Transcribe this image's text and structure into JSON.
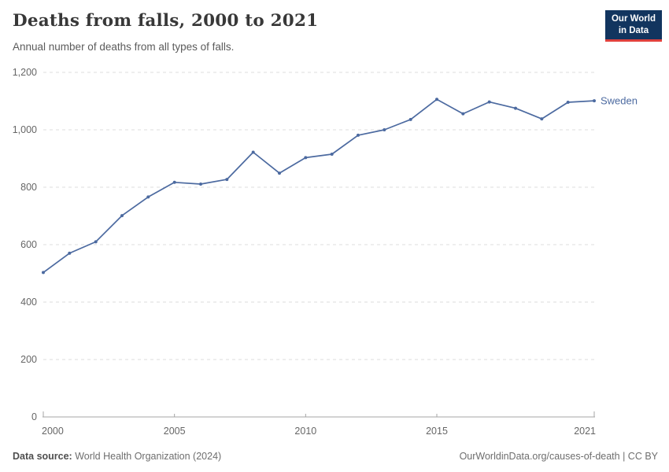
{
  "header": {
    "title": "Deaths from falls, 2000 to 2021",
    "subtitle": "Annual number of deaths from all types of falls.",
    "logo_line1": "Our World",
    "logo_line2": "in Data"
  },
  "colors": {
    "series_blue": "#4c6aa0",
    "logo_navy": "#12355f",
    "logo_red": "#e0413d",
    "gridline": "#dcdcdc",
    "axis_line": "#a5a5a5",
    "tick_label": "#666666",
    "title_text": "#383838"
  },
  "chart_data": {
    "type": "line",
    "title": "Deaths from falls, 2000 to 2021",
    "subtitle": "Annual number of deaths from all types of falls.",
    "xlabel": "",
    "ylabel": "",
    "grid": "horizontal-dashed",
    "legend_position": "end-of-line-label",
    "xlim": [
      2000,
      2021
    ],
    "ylim": [
      0,
      1200
    ],
    "x": [
      2000,
      2001,
      2002,
      2003,
      2004,
      2005,
      2006,
      2007,
      2008,
      2009,
      2010,
      2011,
      2012,
      2013,
      2014,
      2015,
      2016,
      2017,
      2018,
      2019,
      2020,
      2021
    ],
    "series": [
      {
        "name": "Sweden",
        "color": "#4c6aa0",
        "values": [
          503,
          570,
          610,
          701,
          766,
          817,
          811,
          827,
          922,
          849,
          903,
          915,
          981,
          1000,
          1036,
          1106,
          1056,
          1097,
          1075,
          1038,
          1096,
          1101
        ]
      }
    ],
    "xticks": [
      {
        "value": 2000,
        "label": "2000"
      },
      {
        "value": 2005,
        "label": "2005"
      },
      {
        "value": 2010,
        "label": "2010"
      },
      {
        "value": 2015,
        "label": "2015"
      },
      {
        "value": 2021,
        "label": "2021"
      }
    ],
    "yticks": [
      {
        "value": 0,
        "label": "0"
      },
      {
        "value": 200,
        "label": "200"
      },
      {
        "value": 400,
        "label": "400"
      },
      {
        "value": 600,
        "label": "600"
      },
      {
        "value": 800,
        "label": "800"
      },
      {
        "value": 1000,
        "label": "1,000"
      },
      {
        "value": 1200,
        "label": "1,200"
      }
    ]
  },
  "footer": {
    "source_label": "Data source:",
    "source_value": "World Health Organization (2024)",
    "credit": "OurWorldinData.org/causes-of-death | CC BY"
  }
}
